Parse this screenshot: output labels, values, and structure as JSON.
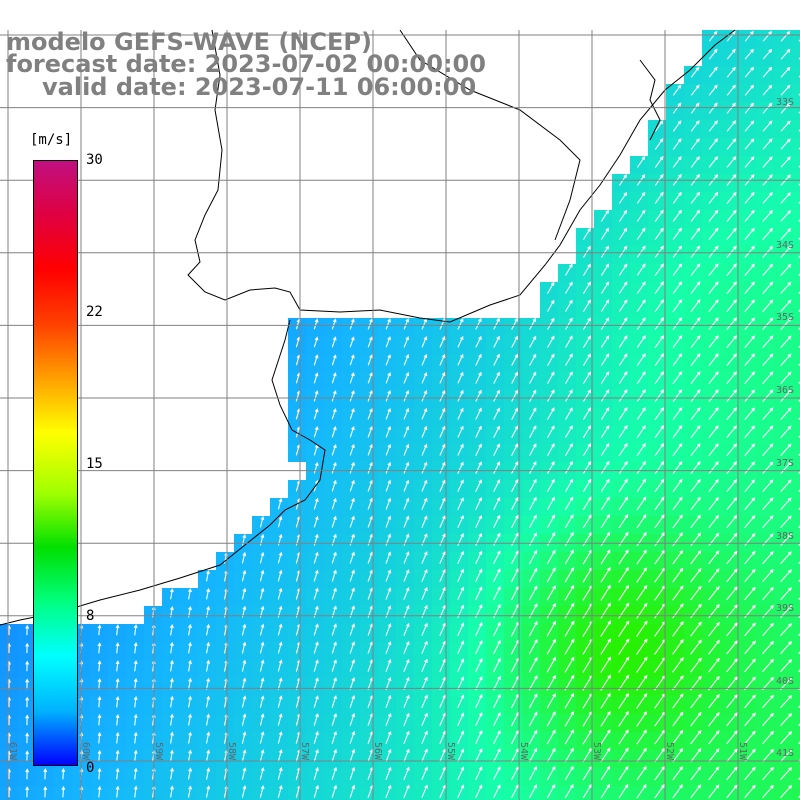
{
  "title": {
    "line1": "modelo GEFS-WAVE (NCEP)",
    "line2": "forecast date: 2023-07-02 00:00:00",
    "line3": "valid date: 2023-07-11 06:00:00"
  },
  "colorbar": {
    "unit": "[m/s]",
    "ticks": [
      "30",
      "22",
      "15",
      "8",
      "0"
    ],
    "colors": [
      "#0000ff",
      "#00b3ff",
      "#00ffff",
      "#00ff80",
      "#00e000",
      "#a0ff00",
      "#ffff00",
      "#ffa000",
      "#ff4000",
      "#ff0000",
      "#e00040",
      "#c01080"
    ]
  },
  "map": {
    "lon_labels": [
      "61W",
      "60W",
      "59W",
      "58W",
      "57W",
      "56W",
      "55W",
      "54W",
      "53W",
      "52W",
      "51W"
    ],
    "lat_labels": [
      "33S",
      "34S",
      "35S",
      "36S",
      "37S",
      "38S",
      "39S",
      "40S",
      "41S"
    ],
    "colors": {
      "land": "#ffffff",
      "coast": "#000000",
      "grid": "#808080",
      "low_wind": "#0a55ff",
      "mid_wind": "#15b4ff",
      "high_wind": "#16ffa9",
      "peak_wind": "#28f000",
      "arrow": "#ffffff"
    }
  }
}
